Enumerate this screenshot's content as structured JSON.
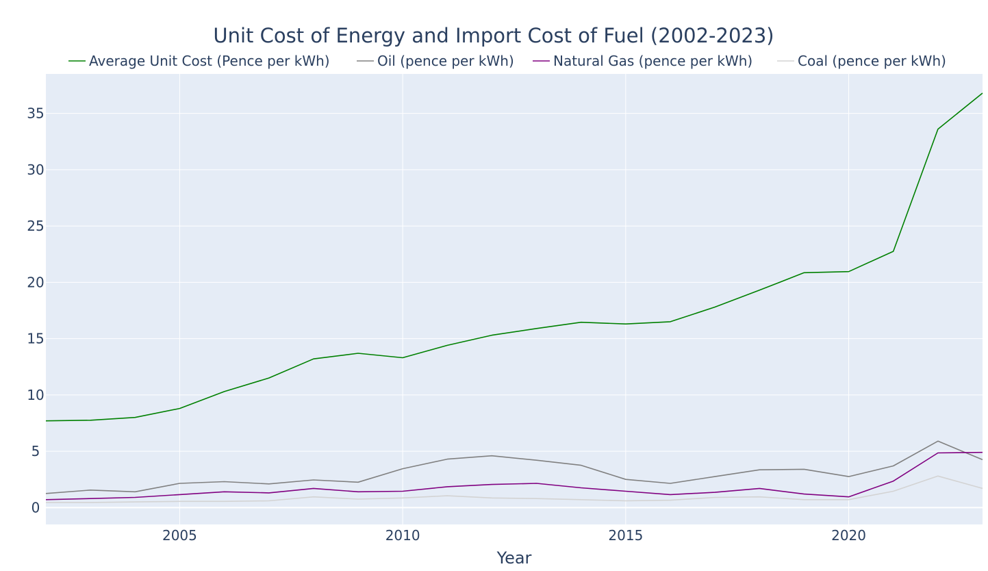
{
  "chart_data": {
    "type": "line",
    "title": "Unit Cost of Energy and Import Cost of Fuel (2002-2023)",
    "xlabel": "Year",
    "ylabel": "",
    "xlim": [
      2002,
      2023
    ],
    "ylim": [
      -1.5,
      38.5
    ],
    "x_ticks": [
      2005,
      2010,
      2015,
      2020
    ],
    "y_ticks": [
      0,
      5,
      10,
      15,
      20,
      25,
      30,
      35
    ],
    "grid": true,
    "legend_position": "top",
    "plot_background": "#e5ecf6",
    "x": [
      2002,
      2003,
      2004,
      2005,
      2006,
      2007,
      2008,
      2009,
      2010,
      2011,
      2012,
      2013,
      2014,
      2015,
      2016,
      2017,
      2018,
      2019,
      2020,
      2021,
      2022,
      2023
    ],
    "series": [
      {
        "name": "Average Unit Cost (Pence per kWh)",
        "color": "#008000",
        "values": [
          7.7,
          7.75,
          8.0,
          8.8,
          10.3,
          11.5,
          13.2,
          13.7,
          13.3,
          14.4,
          15.3,
          15.9,
          16.45,
          16.3,
          16.5,
          17.8,
          19.3,
          20.85,
          20.95,
          22.75,
          33.6,
          36.8
        ]
      },
      {
        "name": "Oil (pence per kWh)",
        "color": "#808080",
        "values": [
          1.25,
          1.55,
          1.4,
          2.15,
          2.3,
          2.1,
          2.45,
          2.25,
          3.45,
          4.3,
          4.6,
          4.2,
          3.75,
          2.5,
          2.15,
          2.75,
          3.35,
          3.4,
          2.75,
          3.7,
          5.9,
          4.25
        ]
      },
      {
        "name": "Natural Gas (pence per kWh)",
        "color": "#800080",
        "values": [
          0.7,
          0.8,
          0.9,
          1.15,
          1.4,
          1.3,
          1.7,
          1.4,
          1.45,
          1.85,
          2.05,
          2.15,
          1.75,
          1.45,
          1.15,
          1.35,
          1.7,
          1.2,
          0.95,
          2.35,
          4.85,
          4.9
        ]
      },
      {
        "name": "Coal (pence per kWh)",
        "color": "#d3d3d3",
        "values": [
          0.45,
          0.45,
          0.5,
          0.55,
          0.55,
          0.6,
          0.95,
          0.75,
          0.85,
          1.05,
          0.85,
          0.8,
          0.7,
          0.6,
          0.65,
          0.9,
          0.95,
          0.7,
          0.7,
          1.45,
          2.8,
          1.7
        ]
      }
    ]
  }
}
